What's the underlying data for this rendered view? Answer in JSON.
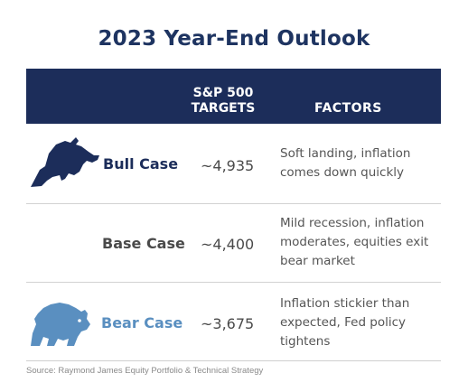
{
  "title": "2023 Year-End Outlook",
  "header": {
    "targets_line1": "S&P 500",
    "targets_line2": "TARGETS",
    "factors": "FACTORS"
  },
  "rows": [
    {
      "case": "Bull Case",
      "target": "~4,935",
      "factors": "Soft landing, inflation comes down quickly",
      "icon": "bull-icon",
      "label_color": "#1c2d5a"
    },
    {
      "case": "Base Case",
      "target": "~4,400",
      "factors": "Mild recession, inflation moderates, equities exit bear market",
      "icon": "none",
      "label_color": "#4a4a4a"
    },
    {
      "case": "Bear Case",
      "target": "~3,675",
      "factors": "Inflation stickier than expected, Fed policy tightens",
      "icon": "bear-icon",
      "label_color": "#5a8fc0"
    }
  ],
  "source": "Source: Raymond James Equity Portfolio & Technical Strategy",
  "colors": {
    "header_band": "#1c2d5a",
    "title": "#1e3461",
    "bear_blue": "#5a8fc0"
  }
}
